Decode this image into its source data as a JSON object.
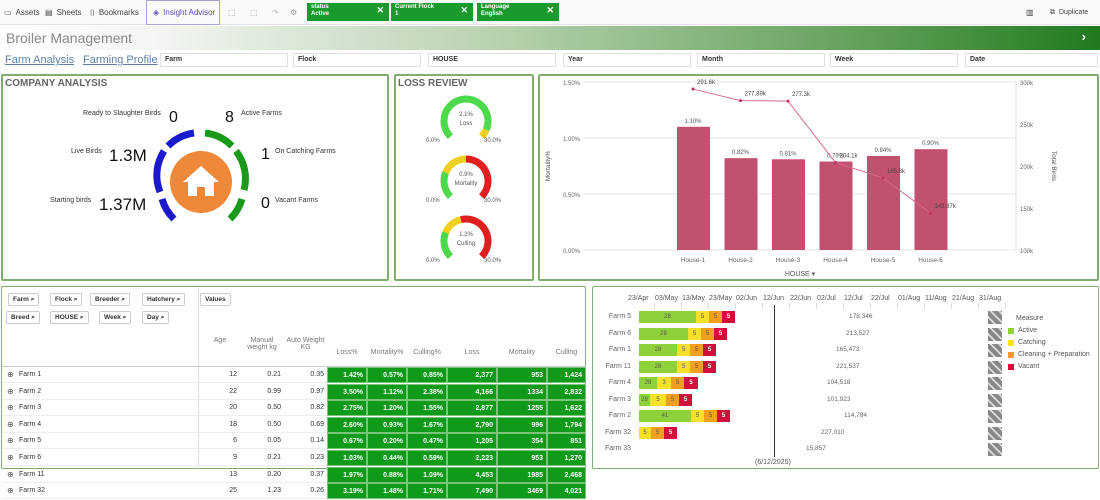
{
  "toolbar": {
    "assets": "Assets",
    "sheets": "Sheets",
    "bookmarks": "Bookmarks",
    "insight": "Insight Advisor",
    "duplicate": "Duplicate",
    "selections": [
      {
        "field": "status",
        "value": "Active"
      },
      {
        "field": "Current Flock",
        "value": "1"
      },
      {
        "field": "Language",
        "value": "English"
      }
    ]
  },
  "app_title": "Broiler Management",
  "sheets": [
    "Farm Analysis",
    "Farming Profile"
  ],
  "filters": [
    "Farm",
    "Flock",
    "HOUSE",
    "Year",
    "Month",
    "Week",
    "Date"
  ],
  "company": {
    "title": "COMPANY ANALYSIS",
    "kpis": {
      "ready_label": "Ready to Slaughter Birds",
      "ready": "0",
      "active_label": "Active Farms",
      "active": "8",
      "live_label": "Live Birds",
      "live": "1.3M",
      "catching_label": "On Catching Farms",
      "catching": "1",
      "starting_label": "Starting birds",
      "starting": "1.37M",
      "vacant_label": "Vacant Farms",
      "vacant": "0"
    },
    "ring_colors": {
      "left": "#1a1acc",
      "right": "#1a9a1a",
      "center": "#f0883a"
    }
  },
  "loss_review": {
    "title": "LOSS REVIEW",
    "gauges": [
      {
        "value": "2.1%",
        "label": "Loss",
        "min": "0.0%",
        "max": "30.0%"
      },
      {
        "value": "0.9%",
        "label": "Mortality",
        "min": "0.0%",
        "max": "30.0%"
      },
      {
        "value": "1.2%",
        "label": "Culling",
        "min": "0.0%",
        "max": "30.0%"
      }
    ]
  },
  "chart_data": {
    "type": "bar+line",
    "xlabel": "HOUSE",
    "ylabel": "Mortality%",
    "y2label": "Total Birds",
    "categories": [
      "House-1",
      "House-2",
      "House-3",
      "House-4",
      "House-5",
      "House-6"
    ],
    "bars": {
      "name": "Mortality%",
      "values": [
        1.1,
        0.82,
        0.81,
        0.79,
        0.84,
        0.9
      ],
      "labels": [
        "1.10%",
        "0.82%",
        "0.81%",
        "0.79%",
        "0.84%",
        "0.90%"
      ],
      "color": "#c2506f"
    },
    "line": {
      "name": "Total Birds",
      "values": [
        291600,
        277890,
        277300,
        204100,
        185800,
        143870
      ],
      "labels": [
        "291.6k",
        "277.89k",
        "277.3k",
        "204.1k",
        "185.8k",
        "143.87k"
      ],
      "color": "#d66a8a"
    },
    "ylim": [
      0,
      1.5
    ],
    "yticks": [
      "0.00%",
      "0.50%",
      "1.00%",
      "1.50%"
    ],
    "y2lim": [
      100000,
      300000
    ],
    "y2ticks": [
      "100k",
      "150k",
      "200k",
      "250k",
      "300k"
    ]
  },
  "table": {
    "dims": [
      "Farm",
      "Flock",
      "Breeder",
      "Hatchery",
      "Breed",
      "HOUSE",
      "Week",
      "Day"
    ],
    "values_label": "Values",
    "columns": [
      "Age",
      "Manual weight kg",
      "Auto Weight KG",
      "Loss%",
      "Mortality%",
      "Culling%",
      "Loss",
      "Mortality",
      "Culling"
    ],
    "rows": [
      [
        "Farm 1",
        "12",
        "0.21",
        "0.35",
        "1.42%",
        "0.57%",
        "0.85%",
        "2,377",
        "953",
        "1,424"
      ],
      [
        "Farm 2",
        "22",
        "0.99",
        "0.97",
        "3.50%",
        "1.12%",
        "2.38%",
        "4,166",
        "1334",
        "2,832"
      ],
      [
        "Farm 3",
        "20",
        "0.50",
        "0.82",
        "2.75%",
        "1.20%",
        "1.55%",
        "2,877",
        "1255",
        "1,622"
      ],
      [
        "Farm 4",
        "18",
        "0.50",
        "0.69",
        "2.60%",
        "0.93%",
        "1.67%",
        "2,790",
        "996",
        "1,794"
      ],
      [
        "Farm 5",
        "6",
        "0.05",
        "0.14",
        "0.67%",
        "0.20%",
        "0.47%",
        "1,205",
        "354",
        "851"
      ],
      [
        "Farm 6",
        "9",
        "0.21",
        "0.23",
        "1.03%",
        "0.44%",
        "0.59%",
        "2,223",
        "953",
        "1,270"
      ],
      [
        "Farm 11",
        "13",
        "0.20",
        "0.37",
        "1.97%",
        "0.88%",
        "1.09%",
        "4,453",
        "1985",
        "2,468"
      ],
      [
        "Farm 32",
        "25",
        "1.23",
        "0.26",
        "3.19%",
        "1.48%",
        "1.71%",
        "7,490",
        "3469",
        "4,021"
      ]
    ]
  },
  "gantt": {
    "axis": [
      "23/Apr",
      "03/May",
      "13/May",
      "23/May",
      "02/Jun",
      "12/Jun",
      "22/Jun",
      "02/Jul",
      "12/Jul",
      "22/Jul",
      "01/Aug",
      "11/Aug",
      "21/Aug",
      "31/Aug"
    ],
    "today": "(6/12/2025)",
    "legend_title": "Measure",
    "legend": [
      {
        "name": "Active",
        "color": "#8fd13a"
      },
      {
        "name": "Catching",
        "color": "#f5e02a"
      },
      {
        "name": "Cleaning + Preparation",
        "color": "#f0a020"
      },
      {
        "name": "Vacant",
        "color": "#d0103a"
      }
    ],
    "rows": [
      {
        "farm": "Farm 5",
        "segs": [
          "28",
          "5",
          "5",
          "5"
        ],
        "total": "178,346"
      },
      {
        "farm": "Farm 6",
        "segs": [
          "28",
          "5",
          "5",
          "5"
        ],
        "total": "213,527"
      },
      {
        "farm": "Farm 1",
        "segs": [
          "28",
          "5",
          "5",
          "5"
        ],
        "total": "165,473"
      },
      {
        "farm": "Farm 11",
        "segs": [
          "28",
          "5",
          "5",
          "5"
        ],
        "total": "221,537"
      },
      {
        "farm": "Farm 4",
        "segs": [
          "28",
          "3",
          "5",
          "5"
        ],
        "total": "104,518"
      },
      {
        "farm": "Farm 3",
        "segs": [
          "28",
          "5",
          "5",
          "5"
        ],
        "total": "101,923"
      },
      {
        "farm": "Farm 2",
        "segs": [
          "41",
          "5",
          "5",
          "5"
        ],
        "total": "114,784"
      },
      {
        "farm": "Farm 32",
        "segs": [
          "",
          "5",
          "5",
          "5"
        ],
        "total": "227,010"
      },
      {
        "farm": "Farm 33",
        "segs": [
          "",
          "",
          "",
          ""
        ],
        "total": "15,857"
      }
    ]
  }
}
